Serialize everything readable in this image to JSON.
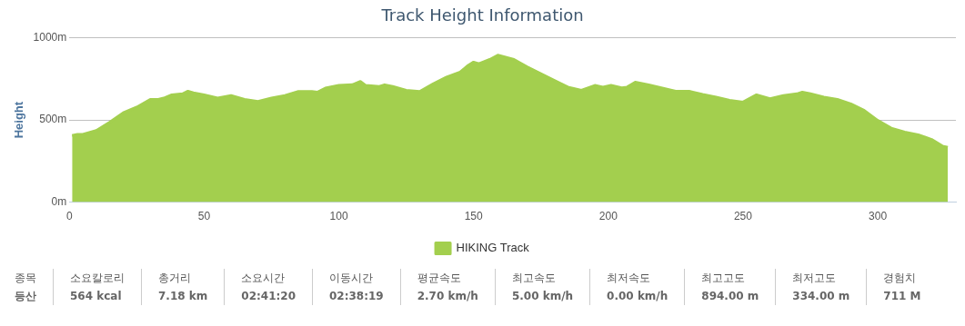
{
  "chart_data": {
    "type": "area",
    "title": "Track Height Information",
    "ylabel": "Height",
    "x": [
      1,
      3,
      5,
      10,
      15,
      20,
      25,
      30,
      33,
      35,
      38,
      42,
      44,
      46,
      50,
      55,
      60,
      65,
      70,
      75,
      80,
      85,
      90,
      92,
      95,
      100,
      105,
      108,
      110,
      115,
      117,
      120,
      125,
      130,
      135,
      140,
      145,
      148,
      150,
      152,
      156,
      159,
      165,
      170,
      180,
      185,
      190,
      195,
      198,
      201,
      205,
      207,
      210,
      215,
      220,
      225,
      230,
      235,
      240,
      245,
      250,
      255,
      260,
      265,
      270,
      272,
      275,
      280,
      285,
      290,
      295,
      300,
      305,
      310,
      315,
      320,
      324,
      326
    ],
    "series": [
      {
        "name": "HIKING Track",
        "color": "#a3cf4e",
        "values": [
          405,
          412,
          412,
          436,
          487,
          544,
          578,
          625,
          625,
          633,
          653,
          659,
          675,
          665,
          653,
          633,
          649,
          625,
          613,
          633,
          649,
          673,
          673,
          669,
          694,
          710,
          714,
          734,
          710,
          704,
          714,
          704,
          680,
          673,
          720,
          761,
          791,
          832,
          852,
          842,
          868,
          894,
          868,
          822,
          740,
          700,
          680,
          710,
          700,
          710,
          696,
          700,
          730,
          714,
          694,
          675,
          675,
          655,
          639,
          619,
          609,
          653,
          629,
          649,
          659,
          669,
          659,
          639,
          625,
          598,
          558,
          497,
          450,
          426,
          410,
          381,
          341,
          334
        ]
      }
    ],
    "xlim": [
      0,
      329
    ],
    "xticks": [
      0,
      50,
      100,
      150,
      200,
      250,
      300
    ],
    "ylim": [
      0,
      1000
    ],
    "yticks": [
      {
        "value": 0,
        "label": "0m"
      },
      {
        "value": 500,
        "label": "500m"
      },
      {
        "value": 1000,
        "label": "1000m"
      }
    ],
    "grid": "y",
    "legend": "bottom",
    "marker": "none",
    "annotations": [
      "종목",
      "등산",
      "소요칼로리",
      "564 kcal",
      "총거리",
      "7.18 km",
      "소요시간",
      "02:41:20",
      "이동시간",
      "02:38:19",
      "평균속도",
      "2.70 km/h",
      "최고속도",
      "5.00 km/h",
      "최저속도",
      "0.00 km/h",
      "최고고도",
      "894.00 m",
      "최저고도",
      "334.00 m",
      "경험치",
      "711 M"
    ]
  }
}
